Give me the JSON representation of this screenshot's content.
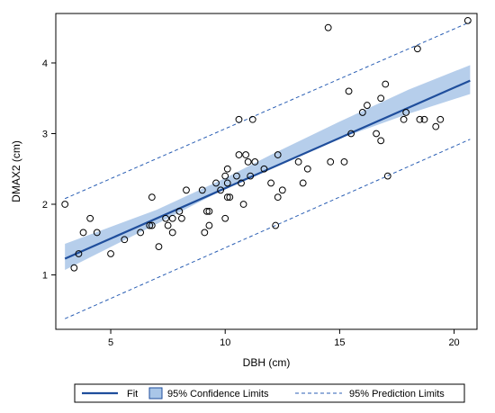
{
  "chart_data": {
    "type": "scatter",
    "xlabel": "DBH (cm)",
    "ylabel": "DMAX2 (cm)",
    "xlim": [
      2.6,
      21.0
    ],
    "ylim": [
      0.23,
      4.7
    ],
    "xticks": [
      5,
      10,
      15,
      20
    ],
    "yticks": [
      1,
      2,
      3,
      4
    ],
    "grid": false,
    "legend": {
      "placement": "bottom",
      "entries": [
        {
          "label": "Fit",
          "kind": "line"
        },
        {
          "label": "95% Confidence Limits",
          "kind": "band"
        },
        {
          "label": "95% Prediction Limits",
          "kind": "dashed"
        }
      ]
    },
    "colors": {
      "fit": "#1f4e9c",
      "band": "#a9c6e8",
      "prediction": "#2b5fb4",
      "points": "#000000"
    },
    "fit": {
      "x": [
        3.0,
        20.7
      ],
      "y": [
        1.23,
        3.75
      ]
    },
    "confidence_lower": {
      "x": [
        3.0,
        7.0,
        10.0,
        12.0,
        15.0,
        18.0,
        20.7
      ],
      "y": [
        1.07,
        1.72,
        2.22,
        2.52,
        2.93,
        3.28,
        3.56
      ]
    },
    "confidence_upper": {
      "x": [
        3.0,
        7.0,
        10.0,
        12.0,
        15.0,
        18.0,
        20.7
      ],
      "y": [
        1.44,
        1.92,
        2.37,
        2.7,
        3.17,
        3.62,
        3.97
      ]
    },
    "prediction_lower": {
      "x": [
        3.0,
        20.7
      ],
      "y": [
        0.38,
        2.92
      ]
    },
    "prediction_upper": {
      "x": [
        3.0,
        20.7
      ],
      "y": [
        2.08,
        4.58
      ]
    },
    "points": [
      {
        "x": 3.0,
        "y": 2.0
      },
      {
        "x": 3.4,
        "y": 1.1
      },
      {
        "x": 3.6,
        "y": 1.3
      },
      {
        "x": 3.8,
        "y": 1.6
      },
      {
        "x": 4.1,
        "y": 1.8
      },
      {
        "x": 4.4,
        "y": 1.6
      },
      {
        "x": 5.0,
        "y": 1.3
      },
      {
        "x": 5.6,
        "y": 1.5
      },
      {
        "x": 6.3,
        "y": 1.6
      },
      {
        "x": 6.7,
        "y": 1.7
      },
      {
        "x": 6.8,
        "y": 2.1
      },
      {
        "x": 6.8,
        "y": 1.7
      },
      {
        "x": 7.1,
        "y": 1.4
      },
      {
        "x": 7.4,
        "y": 1.8
      },
      {
        "x": 7.5,
        "y": 1.7
      },
      {
        "x": 7.7,
        "y": 1.6
      },
      {
        "x": 7.7,
        "y": 1.8
      },
      {
        "x": 8.0,
        "y": 1.9
      },
      {
        "x": 8.1,
        "y": 1.8
      },
      {
        "x": 8.3,
        "y": 2.2
      },
      {
        "x": 9.0,
        "y": 2.2
      },
      {
        "x": 9.1,
        "y": 1.6
      },
      {
        "x": 9.2,
        "y": 1.9
      },
      {
        "x": 9.3,
        "y": 1.9
      },
      {
        "x": 9.3,
        "y": 1.7
      },
      {
        "x": 9.6,
        "y": 2.3
      },
      {
        "x": 9.8,
        "y": 2.2
      },
      {
        "x": 10.0,
        "y": 1.8
      },
      {
        "x": 10.0,
        "y": 2.4
      },
      {
        "x": 10.1,
        "y": 2.5
      },
      {
        "x": 10.1,
        "y": 2.3
      },
      {
        "x": 10.1,
        "y": 2.1
      },
      {
        "x": 10.2,
        "y": 2.1
      },
      {
        "x": 10.5,
        "y": 2.4
      },
      {
        "x": 10.6,
        "y": 2.7
      },
      {
        "x": 10.6,
        "y": 3.2
      },
      {
        "x": 10.7,
        "y": 2.3
      },
      {
        "x": 10.8,
        "y": 2.0
      },
      {
        "x": 10.9,
        "y": 2.7
      },
      {
        "x": 11.0,
        "y": 2.6
      },
      {
        "x": 11.1,
        "y": 2.4
      },
      {
        "x": 11.2,
        "y": 3.2
      },
      {
        "x": 11.3,
        "y": 2.6
      },
      {
        "x": 11.7,
        "y": 2.5
      },
      {
        "x": 12.0,
        "y": 2.3
      },
      {
        "x": 12.2,
        "y": 1.7
      },
      {
        "x": 12.3,
        "y": 2.1
      },
      {
        "x": 12.3,
        "y": 2.7
      },
      {
        "x": 12.5,
        "y": 2.2
      },
      {
        "x": 13.2,
        "y": 2.6
      },
      {
        "x": 13.4,
        "y": 2.3
      },
      {
        "x": 13.6,
        "y": 2.5
      },
      {
        "x": 14.5,
        "y": 4.5
      },
      {
        "x": 14.6,
        "y": 2.6
      },
      {
        "x": 15.2,
        "y": 2.6
      },
      {
        "x": 15.4,
        "y": 3.6
      },
      {
        "x": 15.5,
        "y": 3.0
      },
      {
        "x": 16.0,
        "y": 3.3
      },
      {
        "x": 16.2,
        "y": 3.4
      },
      {
        "x": 16.6,
        "y": 3.0
      },
      {
        "x": 16.8,
        "y": 2.9
      },
      {
        "x": 16.8,
        "y": 3.5
      },
      {
        "x": 17.0,
        "y": 3.7
      },
      {
        "x": 17.1,
        "y": 2.4
      },
      {
        "x": 17.8,
        "y": 3.2
      },
      {
        "x": 17.9,
        "y": 3.3
      },
      {
        "x": 18.4,
        "y": 4.2
      },
      {
        "x": 18.5,
        "y": 3.2
      },
      {
        "x": 18.7,
        "y": 3.2
      },
      {
        "x": 19.2,
        "y": 3.1
      },
      {
        "x": 19.4,
        "y": 3.2
      },
      {
        "x": 20.6,
        "y": 4.6
      }
    ]
  }
}
